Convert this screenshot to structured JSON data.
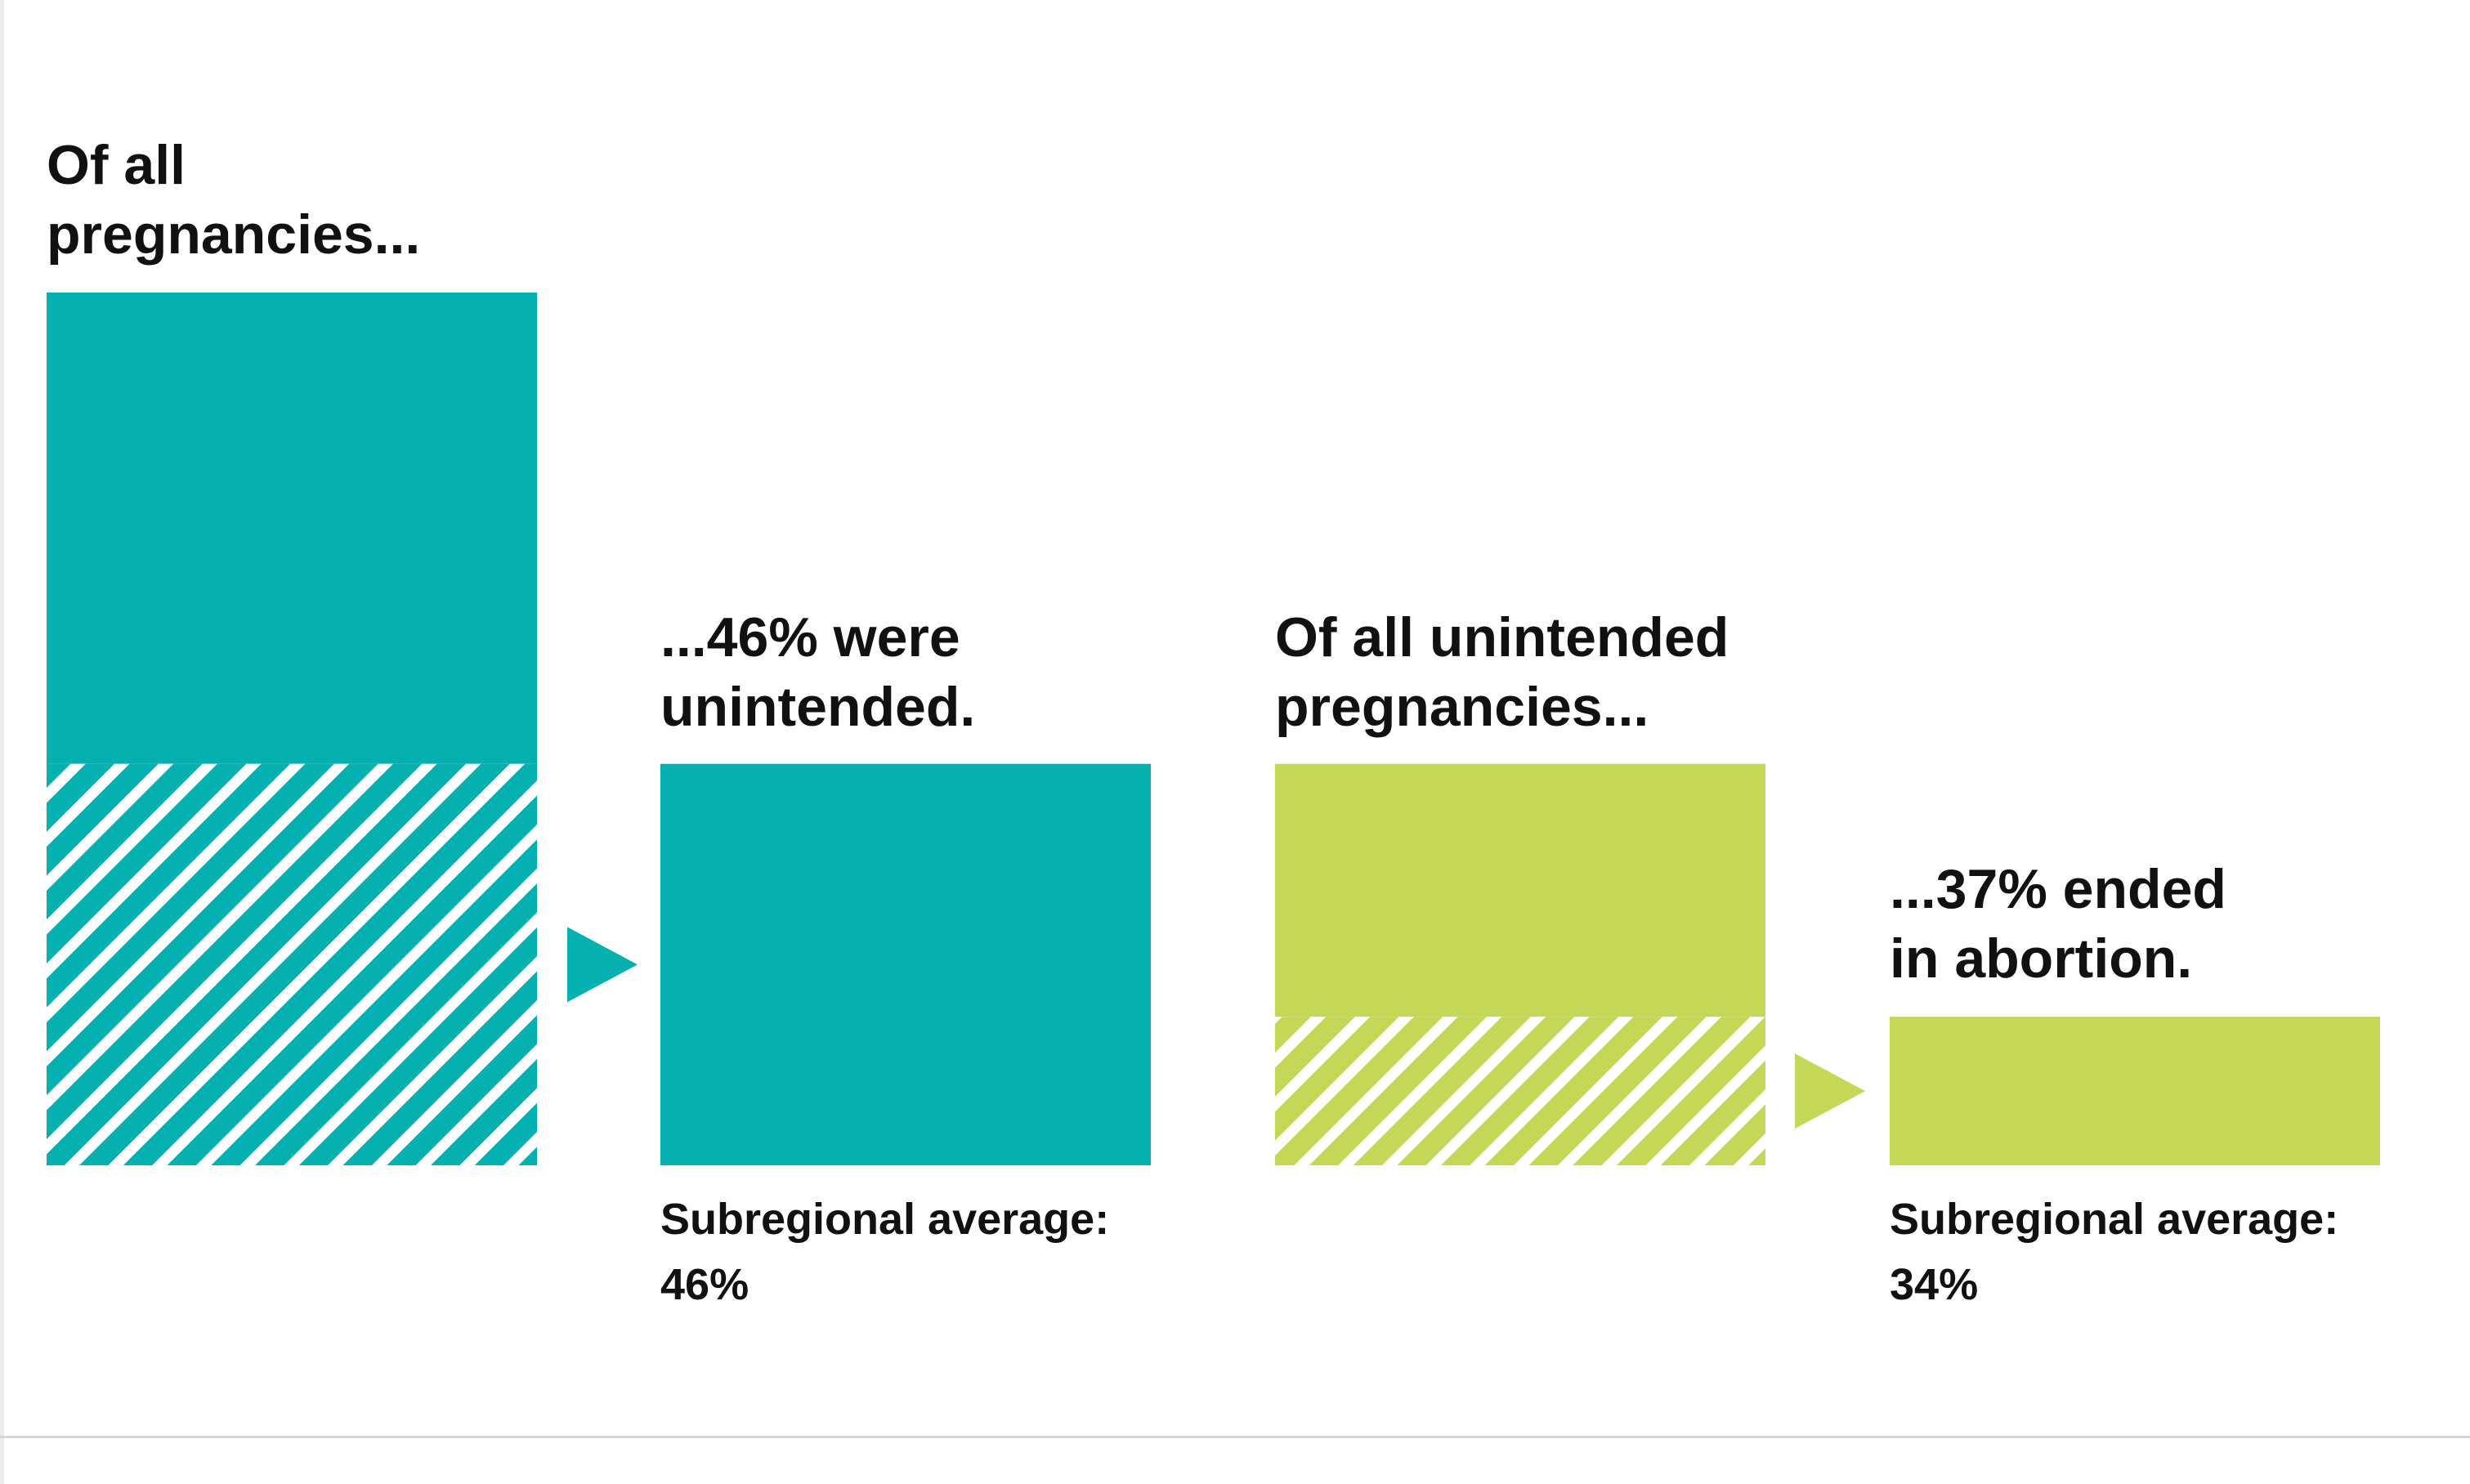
{
  "chart_data": {
    "type": "bar",
    "colors": {
      "teal": "#05b1b0",
      "green": "#c4d756",
      "hatch_background": "#ffffff"
    },
    "panels": [
      {
        "id": "pregnancies",
        "heading_lines": [
          "Of all",
          "pregnancies..."
        ],
        "whole_value": 100,
        "unintended_share_percent": 46,
        "result_heading_lines": [
          "...46% were",
          "unintended."
        ],
        "note_lines": [
          "Subregional average:",
          "46%"
        ],
        "subregional_average_percent": 46,
        "color": "#05b1b0"
      },
      {
        "id": "unintended",
        "heading_lines": [
          "Of all unintended",
          "pregnancies..."
        ],
        "whole_value": 100,
        "unintended_share_percent": 37,
        "result_heading_lines": [
          "...37% ended",
          "in abortion."
        ],
        "note_lines": [
          "Subregional average:",
          "34%"
        ],
        "subregional_average_percent": 34,
        "color": "#c4d756"
      }
    ]
  }
}
